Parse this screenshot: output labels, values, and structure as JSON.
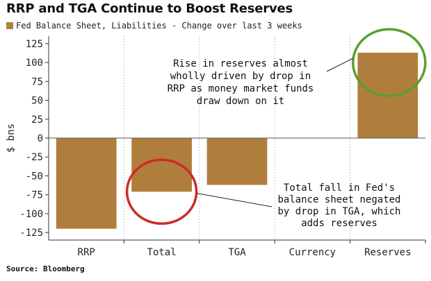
{
  "chart_data": {
    "type": "bar",
    "title": "RRP and TGA Continue to Boost Reserves",
    "legend": [
      {
        "label": "Fed Balance Sheet, Liabilities - Change over last 3 weeks",
        "color": "#b07e3c"
      }
    ],
    "categories": [
      "RRP",
      "Total",
      "TGA",
      "Currency",
      "Reserves"
    ],
    "values": [
      -120,
      -71,
      -62,
      0,
      113
    ],
    "ylabel": "$ bns",
    "ylim": [
      -135,
      135
    ],
    "yticks": [
      125,
      100,
      75,
      50,
      25,
      0,
      -25,
      -50,
      -75,
      -100,
      -125
    ],
    "grid": "vertical dotted lines at category boundaries",
    "annotations": [
      {
        "lines": [
          "Rise in reserves almost",
          "wholly driven by drop in",
          "RRP as money market funds",
          "draw down on it"
        ],
        "points_to": "Reserves",
        "circle_color": "#5aa02c"
      },
      {
        "lines": [
          "Total fall in Fed's",
          "balance sheet negated",
          "by drop in TGA, which",
          "adds reserves"
        ],
        "points_to": "Total",
        "circle_color": "#cc2b2b"
      }
    ]
  },
  "source": "Source: Bloomberg",
  "colors": {
    "bar": "#b07e3c",
    "axis": "#333333",
    "green_circle": "#5aa02c",
    "red_circle": "#cc2b2b"
  }
}
